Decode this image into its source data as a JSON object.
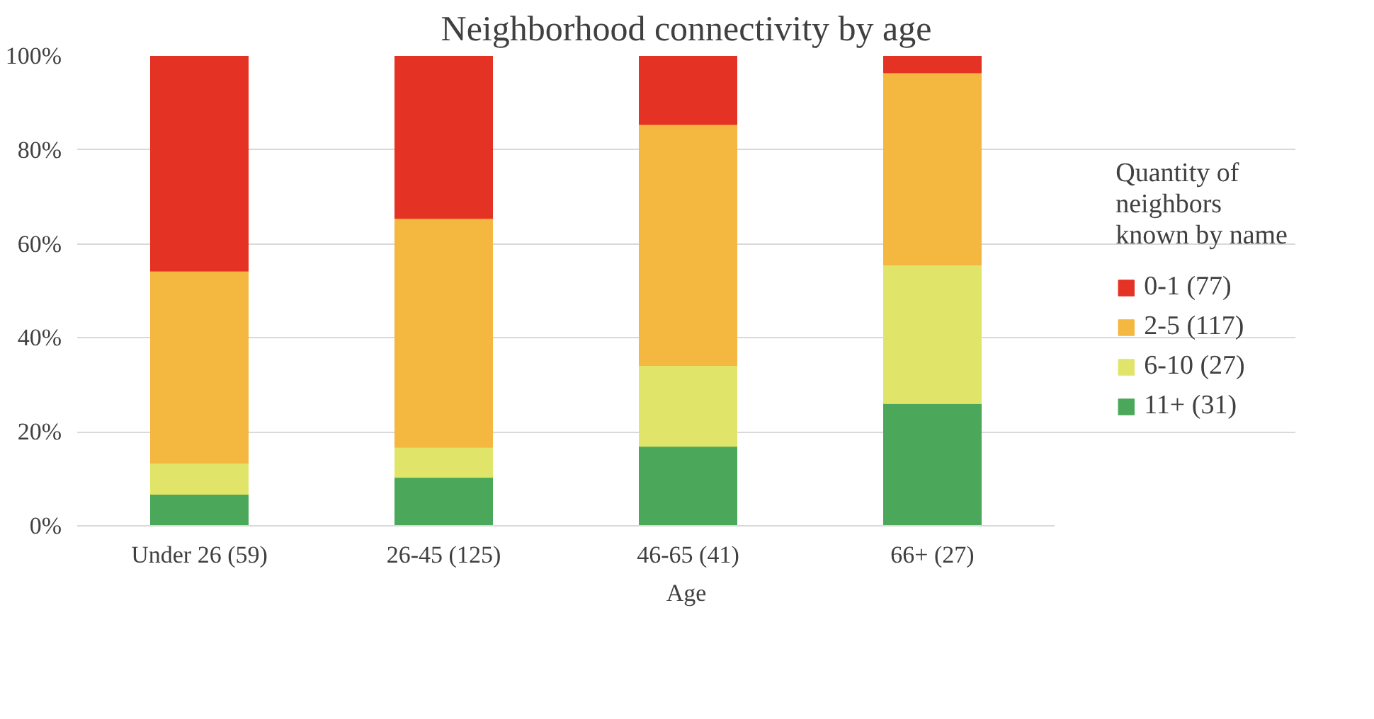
{
  "chart_data": {
    "type": "bar",
    "title": "Neighborhood connectivity by age",
    "xlabel": "Age",
    "legend_title": "Quantity of\nneighbors\nknown by name",
    "categories": [
      "Under 26 (59)",
      "26-45 (125)",
      "46-65 (41)",
      "66+ (27)"
    ],
    "stacked": true,
    "series": [
      {
        "name": "11+ (31)",
        "color": "#4ba85a",
        "values": [
          6.7,
          10.3,
          16.9,
          26.0
        ]
      },
      {
        "name": "6-10 (27)",
        "color": "#e0e56a",
        "values": [
          6.6,
          6.4,
          17.2,
          29.5
        ]
      },
      {
        "name": "2-5 (117)",
        "color": "#f4b740",
        "values": [
          40.9,
          48.7,
          51.3,
          40.9
        ]
      },
      {
        "name": "0-1 (77)",
        "color": "#e43324",
        "values": [
          45.8,
          34.6,
          14.6,
          3.6
        ]
      }
    ],
    "ylim": [
      0,
      100
    ],
    "yticks": [
      {
        "value": 0,
        "label": "0%"
      },
      {
        "value": 20,
        "label": "20%"
      },
      {
        "value": 40,
        "label": "40%"
      },
      {
        "value": 60,
        "label": "60%"
      },
      {
        "value": 80,
        "label": "80%"
      },
      {
        "value": 100,
        "label": "100%"
      }
    ],
    "grid": "y",
    "legend": "right"
  }
}
